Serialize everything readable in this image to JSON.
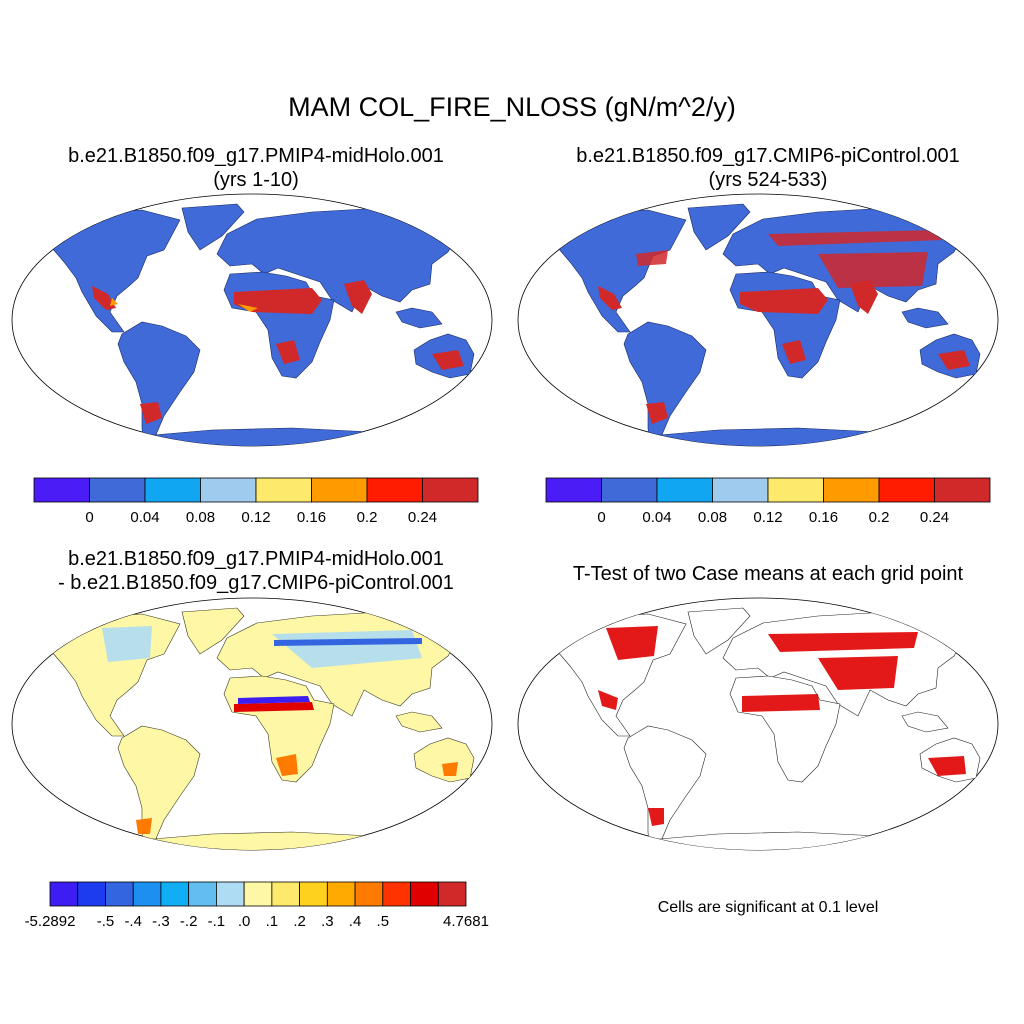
{
  "main_title": "MAM COL_FIRE_NLOSS (gN/m^2/y)",
  "panels": [
    {
      "title_line1": "b.e21.B1850.f09_g17.PMIP4-midHolo.001",
      "title_line2": "(yrs 1-10)"
    },
    {
      "title_line1": "b.e21.B1850.f09_g17.CMIP6-piControl.001",
      "title_line2": "(yrs 524-533)"
    },
    {
      "title_line1": "b.e21.B1850.f09_g17.PMIP4-midHolo.001",
      "title_line2": "- b.e21.B1850.f09_g17.CMIP6-piControl.001"
    },
    {
      "title_line1": "T-Test of two Case means at each grid point",
      "title_line2": ""
    }
  ],
  "colorbar_abs": {
    "colors": [
      "#4b1cf5",
      "#3f6ad8",
      "#10a6f2",
      "#9fcbee",
      "#fde96b",
      "#ff9b00",
      "#ff1c00",
      "#d1282a"
    ],
    "labels": [
      "0",
      "0.04",
      "0.08",
      "0.12",
      "0.16",
      "0.2",
      "0.24"
    ]
  },
  "colorbar_diff": {
    "colors": [
      "#3d1ef2",
      "#1d3cf0",
      "#3465e0",
      "#1c8ff0",
      "#12aef5",
      "#62bdf0",
      "#aedcf3",
      "#fdf7a6",
      "#fde96b",
      "#ffd11f",
      "#ffaa00",
      "#ff7a00",
      "#ff3300",
      "#e00000",
      "#d1282a"
    ],
    "labels": [
      "-5.2892",
      "-.5",
      "-.4",
      "-.3",
      "-.2",
      "-.1",
      ".0",
      ".1",
      ".2",
      ".3",
      ".4",
      ".5",
      "4.7681"
    ]
  },
  "significance_note": "Cells are significant at 0.1 level",
  "colors": {
    "land_base": "#3f6ad8",
    "diff_base": "#fdf7a6",
    "signif": "#e00000",
    "fire_hot": "#d1282a"
  }
}
